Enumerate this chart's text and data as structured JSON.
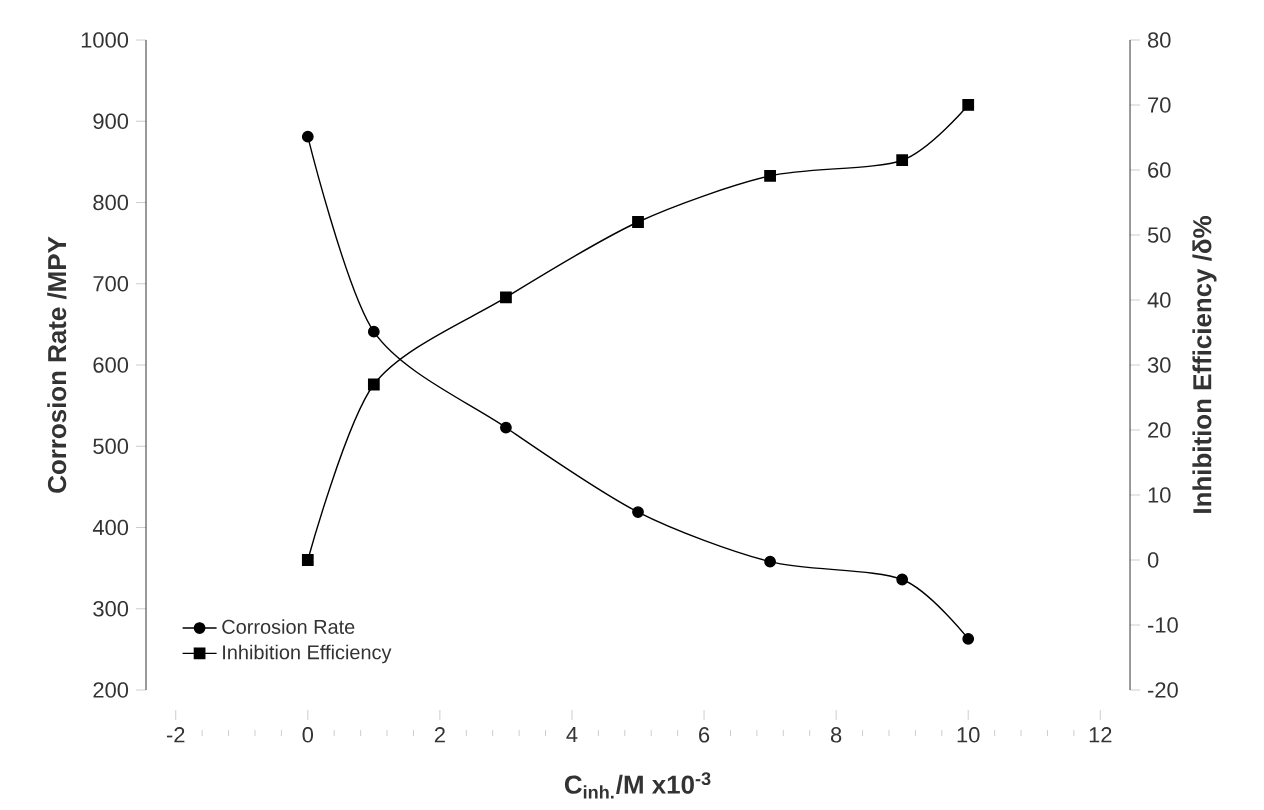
{
  "chart_data": {
    "type": "line",
    "xlabel": "C$_{inh.}$/M x10$^{-3}$",
    "ylabel": "Corrosion Rate /MPY",
    "y2label": "Inhibition Efficiency /δ%",
    "x": [
      0,
      1,
      3,
      5,
      7,
      9,
      10
    ],
    "series": [
      {
        "name": "Corrosion Rate",
        "color": "#000000",
        "marker": "circle",
        "values": [
          881,
          641,
          523,
          419,
          358,
          336,
          263
        ]
      },
      {
        "name": "Inhibition Efficiency",
        "color": "#000000",
        "marker": "square",
        "axis": "y2",
        "values": [
          0,
          27,
          40.4,
          52,
          59.1,
          61.5,
          70
        ]
      }
    ],
    "xlim": [
      -2,
      12
    ],
    "xticks": [
      -2,
      0,
      2,
      4,
      6,
      8,
      10,
      12
    ],
    "ylim": [
      200,
      1000
    ],
    "yticks": [
      200,
      300,
      400,
      500,
      600,
      700,
      800,
      900,
      1000
    ],
    "y2lim": [
      -20,
      80
    ],
    "y2ticks": [
      -20,
      -10,
      0,
      10,
      20,
      30,
      40,
      50,
      60,
      70,
      80
    ],
    "legend": "bottom left",
    "line_style": "solid"
  }
}
